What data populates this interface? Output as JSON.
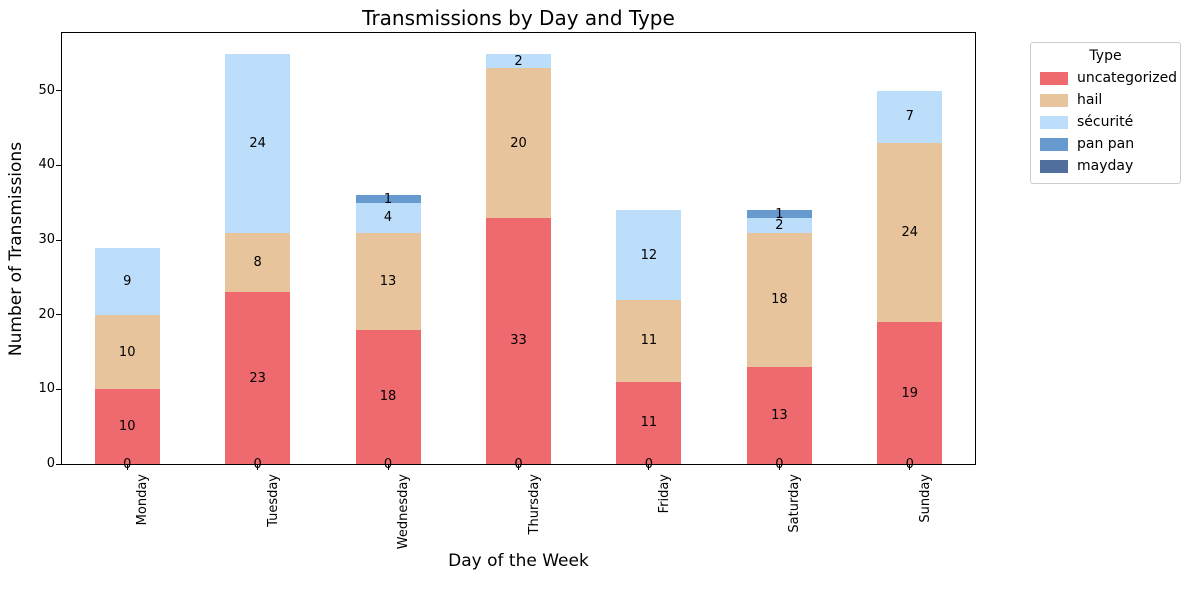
{
  "legend": {
    "title": "Type"
  },
  "chart_data": {
    "type": "bar",
    "stacked": true,
    "title": "Transmissions by Day and Type",
    "xlabel": "Day of the Week",
    "ylabel": "Number of Transmissions",
    "categories": [
      "Monday",
      "Tuesday",
      "Wednesday",
      "Thursday",
      "Friday",
      "Saturday",
      "Sunday"
    ],
    "series": [
      {
        "name": "uncategorized",
        "color": "#ef6a6e",
        "values": [
          10,
          23,
          18,
          33,
          11,
          13,
          19
        ]
      },
      {
        "name": "hail",
        "color": "#e8c49c",
        "values": [
          10,
          8,
          13,
          20,
          11,
          18,
          24
        ]
      },
      {
        "name": "sécurité",
        "color": "#bddefb",
        "values": [
          9,
          24,
          4,
          2,
          12,
          2,
          7
        ]
      },
      {
        "name": "pan pan",
        "color": "#679bd0",
        "values": [
          0,
          0,
          1,
          0,
          0,
          1,
          0
        ]
      },
      {
        "name": "mayday",
        "color": "#506f9c",
        "values": [
          0,
          0,
          0,
          0,
          0,
          0,
          0
        ]
      }
    ],
    "totals": [
      29,
      55,
      36,
      55,
      34,
      34,
      50
    ],
    "ylim": [
      0,
      57.75
    ],
    "yticks": [
      0,
      10,
      20,
      30,
      40,
      50
    ],
    "grid": false,
    "background": "#ffffff",
    "legend_position": "outside-upper-right",
    "bar_value_labels": "each nonzero segment labeled at its center; zero-valued segments produce a 0 label at the bar baseline"
  }
}
